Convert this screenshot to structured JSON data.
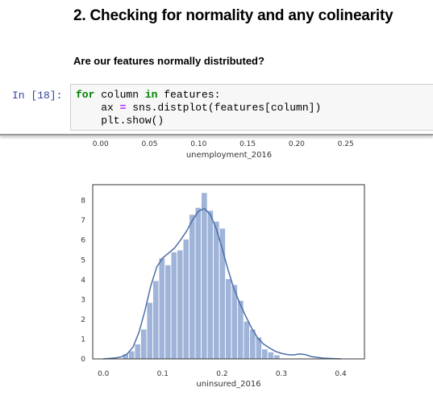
{
  "heading": "2. Checking for normality and any colinearity",
  "question": "Are our features normally distributed?",
  "cell": {
    "prompt": "In [18]:",
    "lines": [
      [
        {
          "t": "for",
          "c": "kw"
        },
        {
          "t": " column ",
          "c": ""
        },
        {
          "t": "in",
          "c": "kw"
        },
        {
          "t": " features:",
          "c": ""
        }
      ],
      [
        {
          "t": "    ax ",
          "c": ""
        },
        {
          "t": "=",
          "c": "op"
        },
        {
          "t": " sns.distplot(features[column])",
          "c": ""
        }
      ],
      [
        {
          "t": "    plt.show()",
          "c": ""
        }
      ]
    ]
  },
  "chart_data": [
    {
      "type": "histogram",
      "xlabel": "unemployment_2016",
      "xticks": [
        0.0,
        0.05,
        0.1,
        0.15,
        0.2,
        0.25
      ],
      "xtick_labels": [
        "0.00",
        "0.05",
        "0.10",
        "0.15",
        "0.20",
        "0.25"
      ],
      "xlim": [
        -0.008,
        0.27
      ]
    },
    {
      "type": "histogram",
      "xlabel": "uninsured_2016",
      "xlim": [
        -0.018,
        0.44
      ],
      "ylim": [
        0,
        8.8
      ],
      "xticks": [
        0.0,
        0.1,
        0.2,
        0.3,
        0.4
      ],
      "xtick_labels": [
        "0.0",
        "0.1",
        "0.2",
        "0.3",
        "0.4"
      ],
      "yticks": [
        0,
        1,
        2,
        3,
        4,
        5,
        6,
        7,
        8
      ],
      "ytick_labels": [
        "0",
        "1",
        "2",
        "3",
        "4",
        "5",
        "6",
        "7",
        "8"
      ],
      "bar_color": "#9fb4d8",
      "kde_color": "#4c6ea8",
      "bins": {
        "start": 0.0323,
        "width": 0.0102,
        "values": [
          0.25,
          0.4,
          0.75,
          1.5,
          2.85,
          3.95,
          5.1,
          4.75,
          5.4,
          5.5,
          6.05,
          7.3,
          7.65,
          8.4,
          7.5,
          6.95,
          6.6,
          4.05,
          3.75,
          2.95,
          1.9,
          1.5,
          1.1,
          0.5,
          0.35,
          0.2
        ]
      },
      "kde": {
        "x": [
          0.0,
          0.02,
          0.03,
          0.04,
          0.05,
          0.06,
          0.07,
          0.08,
          0.09,
          0.1,
          0.11,
          0.12,
          0.13,
          0.14,
          0.15,
          0.16,
          0.17,
          0.18,
          0.19,
          0.2,
          0.21,
          0.22,
          0.23,
          0.24,
          0.25,
          0.26,
          0.27,
          0.28,
          0.29,
          0.3,
          0.31,
          0.32,
          0.33,
          0.34,
          0.35,
          0.37,
          0.4
        ],
        "y": [
          0.0,
          0.05,
          0.1,
          0.25,
          0.6,
          1.35,
          2.45,
          3.7,
          4.65,
          5.1,
          5.35,
          5.6,
          6.0,
          6.45,
          7.0,
          7.45,
          7.6,
          7.3,
          6.6,
          5.6,
          4.5,
          3.55,
          2.8,
          2.15,
          1.55,
          1.05,
          0.75,
          0.55,
          0.38,
          0.28,
          0.22,
          0.2,
          0.25,
          0.22,
          0.12,
          0.04,
          0.0
        ]
      }
    }
  ]
}
